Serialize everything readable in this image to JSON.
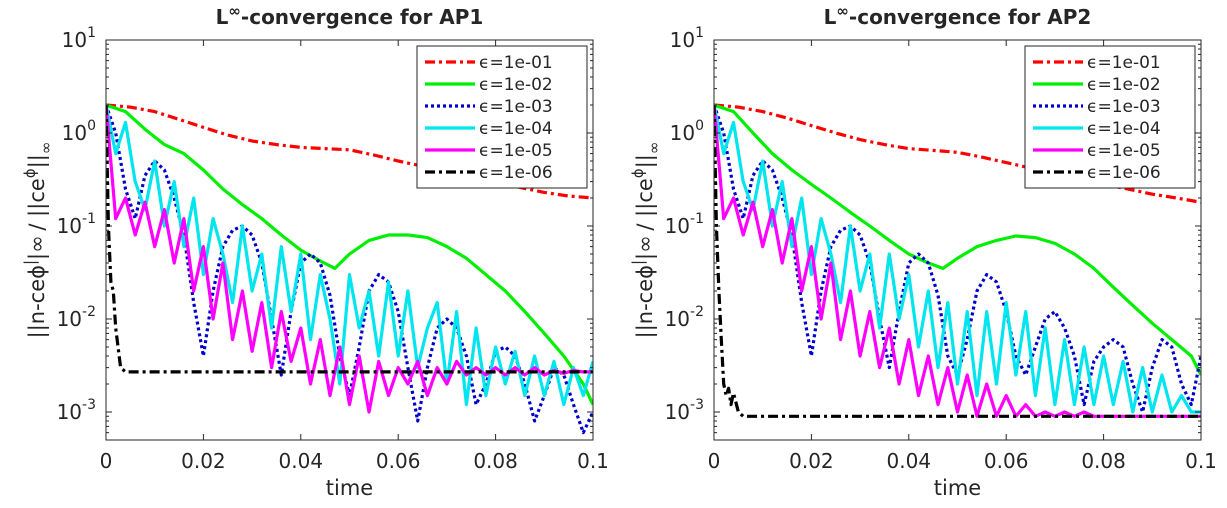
{
  "chart_data": [
    {
      "type": "line",
      "title": "L∞-convergence for AP1",
      "xlabel": "time",
      "ylabel": "||n-ceϕ||∞ / ||ceϕ||∞",
      "xlim": [
        0,
        0.1
      ],
      "ylim": [
        0.0005,
        10
      ],
      "yscale": "log",
      "xticks": [
        "0",
        "0.02",
        "0.04",
        "0.06",
        "0.08",
        "0.1"
      ],
      "yticks": [
        "10-3",
        "10-2",
        "10-1",
        "100",
        "101"
      ],
      "legend_position": "top-right",
      "grid": false,
      "series": [
        {
          "name": "ϵ=1e-01",
          "color": "#ff0000",
          "style": "dashdot",
          "x": [
            0,
            0.005,
            0.01,
            0.015,
            0.02,
            0.025,
            0.03,
            0.035,
            0.04,
            0.045,
            0.05,
            0.055,
            0.06,
            0.065,
            0.07,
            0.075,
            0.08,
            0.085,
            0.09,
            0.095,
            0.1
          ],
          "y": [
            2.0,
            1.9,
            1.7,
            1.4,
            1.15,
            0.95,
            0.82,
            0.75,
            0.7,
            0.68,
            0.66,
            0.58,
            0.5,
            0.44,
            0.4,
            0.35,
            0.3,
            0.26,
            0.23,
            0.21,
            0.2
          ]
        },
        {
          "name": "ϵ=1e-02",
          "color": "#00ee00",
          "style": "solid",
          "x": [
            0,
            0.004,
            0.008,
            0.012,
            0.016,
            0.02,
            0.024,
            0.028,
            0.032,
            0.036,
            0.04,
            0.044,
            0.047,
            0.05,
            0.054,
            0.058,
            0.062,
            0.066,
            0.07,
            0.074,
            0.078,
            0.082,
            0.086,
            0.09,
            0.094,
            0.098,
            0.1
          ],
          "y": [
            2.0,
            1.7,
            1.1,
            0.75,
            0.6,
            0.4,
            0.25,
            0.17,
            0.12,
            0.08,
            0.055,
            0.042,
            0.035,
            0.05,
            0.07,
            0.08,
            0.08,
            0.075,
            0.06,
            0.045,
            0.03,
            0.02,
            0.012,
            0.007,
            0.004,
            0.002,
            0.0012
          ]
        },
        {
          "name": "ϵ=1e-03",
          "color": "#0000cc",
          "style": "dotted",
          "x": [
            0,
            0.002,
            0.004,
            0.006,
            0.008,
            0.01,
            0.012,
            0.014,
            0.016,
            0.018,
            0.02,
            0.022,
            0.024,
            0.026,
            0.028,
            0.03,
            0.032,
            0.034,
            0.036,
            0.038,
            0.04,
            0.042,
            0.044,
            0.046,
            0.048,
            0.05,
            0.052,
            0.054,
            0.056,
            0.058,
            0.06,
            0.062,
            0.064,
            0.066,
            0.068,
            0.07,
            0.072,
            0.074,
            0.076,
            0.078,
            0.08,
            0.082,
            0.084,
            0.086,
            0.088,
            0.09,
            0.092,
            0.094,
            0.096,
            0.098,
            0.1
          ],
          "y": [
            2.0,
            1.0,
            0.25,
            0.12,
            0.35,
            0.5,
            0.4,
            0.2,
            0.08,
            0.015,
            0.004,
            0.02,
            0.06,
            0.09,
            0.1,
            0.08,
            0.04,
            0.01,
            0.0025,
            0.012,
            0.04,
            0.05,
            0.04,
            0.018,
            0.004,
            0.0015,
            0.005,
            0.02,
            0.03,
            0.025,
            0.012,
            0.003,
            0.0008,
            0.003,
            0.008,
            0.01,
            0.008,
            0.004,
            0.0012,
            0.002,
            0.0045,
            0.005,
            0.004,
            0.002,
            0.0008,
            0.0015,
            0.003,
            0.0025,
            0.0012,
            0.0006,
            0.001
          ]
        },
        {
          "name": "ϵ=1e-04",
          "color": "#00e5ee",
          "style": "solid",
          "x": [
            0,
            0.002,
            0.004,
            0.006,
            0.008,
            0.01,
            0.012,
            0.014,
            0.016,
            0.018,
            0.02,
            0.022,
            0.024,
            0.026,
            0.028,
            0.03,
            0.032,
            0.034,
            0.036,
            0.038,
            0.04,
            0.042,
            0.044,
            0.046,
            0.048,
            0.05,
            0.052,
            0.054,
            0.056,
            0.058,
            0.06,
            0.062,
            0.064,
            0.066,
            0.068,
            0.07,
            0.072,
            0.074,
            0.076,
            0.078,
            0.08,
            0.082,
            0.084,
            0.086,
            0.088,
            0.09,
            0.092,
            0.094,
            0.096,
            0.098,
            0.1
          ],
          "y": [
            2.0,
            0.6,
            1.3,
            0.3,
            0.15,
            0.5,
            0.1,
            0.3,
            0.06,
            0.2,
            0.03,
            0.12,
            0.05,
            0.015,
            0.1,
            0.02,
            0.05,
            0.008,
            0.06,
            0.012,
            0.05,
            0.006,
            0.03,
            0.01,
            0.002,
            0.03,
            0.008,
            0.02,
            0.004,
            0.025,
            0.004,
            0.02,
            0.003,
            0.008,
            0.015,
            0.002,
            0.012,
            0.0012,
            0.008,
            0.0015,
            0.005,
            0.002,
            0.0045,
            0.0015,
            0.004,
            0.0015,
            0.0035,
            0.0012,
            0.003,
            0.0015,
            0.0035
          ]
        },
        {
          "name": "ϵ=1e-05",
          "color": "#ff00ff",
          "style": "solid",
          "x": [
            0,
            0.002,
            0.004,
            0.006,
            0.008,
            0.01,
            0.012,
            0.014,
            0.016,
            0.018,
            0.02,
            0.022,
            0.024,
            0.026,
            0.028,
            0.03,
            0.032,
            0.034,
            0.036,
            0.038,
            0.04,
            0.042,
            0.044,
            0.046,
            0.048,
            0.05,
            0.052,
            0.054,
            0.056,
            0.058,
            0.06,
            0.062,
            0.064,
            0.066,
            0.068,
            0.07,
            0.072,
            0.074,
            0.076,
            0.078,
            0.08,
            0.082,
            0.084,
            0.086,
            0.088,
            0.09,
            0.092,
            0.094,
            0.096,
            0.098,
            0.1
          ],
          "y": [
            2.0,
            0.12,
            0.2,
            0.08,
            0.18,
            0.06,
            0.15,
            0.04,
            0.12,
            0.02,
            0.06,
            0.01,
            0.04,
            0.006,
            0.02,
            0.0045,
            0.015,
            0.003,
            0.012,
            0.0035,
            0.008,
            0.002,
            0.006,
            0.0015,
            0.005,
            0.0012,
            0.004,
            0.001,
            0.0035,
            0.0015,
            0.003,
            0.002,
            0.0035,
            0.0015,
            0.003,
            0.002,
            0.0035,
            0.0025,
            0.003,
            0.0025,
            0.003,
            0.0025,
            0.003,
            0.0025,
            0.003,
            0.0025,
            0.0028,
            0.0026,
            0.0028,
            0.0027,
            0.0027
          ]
        },
        {
          "name": "ϵ=1e-06",
          "color": "#000000",
          "style": "dashdot",
          "x": [
            0,
            0.0005,
            0.001,
            0.0015,
            0.002,
            0.003,
            0.004,
            0.01,
            0.02,
            0.03,
            0.04,
            0.05,
            0.06,
            0.07,
            0.08,
            0.09,
            0.1
          ],
          "y": [
            2.0,
            0.1,
            0.025,
            0.02,
            0.008,
            0.003,
            0.0027,
            0.0027,
            0.0027,
            0.0027,
            0.0027,
            0.0027,
            0.0027,
            0.0027,
            0.0027,
            0.0027,
            0.0027
          ]
        }
      ]
    },
    {
      "type": "line",
      "title": "L∞-convergence for AP2",
      "xlabel": "time",
      "ylabel": "||n-ceϕ||∞ / ||ceϕ||∞",
      "xlim": [
        0,
        0.1
      ],
      "ylim": [
        0.0005,
        10
      ],
      "yscale": "log",
      "xticks": [
        "0",
        "0.02",
        "0.04",
        "0.06",
        "0.08",
        "0.1"
      ],
      "yticks": [
        "10-3",
        "10-2",
        "10-1",
        "100",
        "101"
      ],
      "legend_position": "top-right",
      "grid": false,
      "series": [
        {
          "name": "ϵ=1e-01",
          "color": "#ff0000",
          "style": "dashdot",
          "x": [
            0,
            0.005,
            0.01,
            0.015,
            0.02,
            0.025,
            0.03,
            0.035,
            0.04,
            0.045,
            0.05,
            0.055,
            0.06,
            0.065,
            0.07,
            0.075,
            0.08,
            0.085,
            0.09,
            0.095,
            0.1
          ],
          "y": [
            2.0,
            1.9,
            1.7,
            1.45,
            1.2,
            1.0,
            0.85,
            0.75,
            0.68,
            0.65,
            0.62,
            0.55,
            0.48,
            0.42,
            0.36,
            0.32,
            0.28,
            0.25,
            0.22,
            0.2,
            0.18
          ]
        },
        {
          "name": "ϵ=1e-02",
          "color": "#00ee00",
          "style": "solid",
          "x": [
            0,
            0.004,
            0.008,
            0.012,
            0.016,
            0.02,
            0.024,
            0.028,
            0.032,
            0.036,
            0.04,
            0.044,
            0.047,
            0.05,
            0.054,
            0.058,
            0.062,
            0.066,
            0.07,
            0.074,
            0.078,
            0.082,
            0.086,
            0.09,
            0.094,
            0.098,
            0.1
          ],
          "y": [
            2.0,
            1.7,
            1.0,
            0.6,
            0.4,
            0.28,
            0.2,
            0.14,
            0.1,
            0.07,
            0.05,
            0.04,
            0.035,
            0.045,
            0.06,
            0.07,
            0.078,
            0.075,
            0.065,
            0.05,
            0.035,
            0.022,
            0.014,
            0.009,
            0.006,
            0.004,
            0.0025
          ]
        },
        {
          "name": "ϵ=1e-03",
          "color": "#0000cc",
          "style": "dotted",
          "x": [
            0,
            0.002,
            0.004,
            0.006,
            0.008,
            0.01,
            0.012,
            0.014,
            0.016,
            0.018,
            0.02,
            0.022,
            0.024,
            0.026,
            0.028,
            0.03,
            0.032,
            0.034,
            0.036,
            0.038,
            0.04,
            0.042,
            0.044,
            0.046,
            0.048,
            0.05,
            0.052,
            0.054,
            0.056,
            0.058,
            0.06,
            0.062,
            0.064,
            0.066,
            0.068,
            0.07,
            0.072,
            0.074,
            0.076,
            0.078,
            0.08,
            0.082,
            0.084,
            0.086,
            0.088,
            0.09,
            0.092,
            0.094,
            0.096,
            0.098,
            0.1
          ],
          "y": [
            2.0,
            1.0,
            0.25,
            0.12,
            0.35,
            0.5,
            0.4,
            0.2,
            0.08,
            0.015,
            0.004,
            0.02,
            0.06,
            0.09,
            0.1,
            0.08,
            0.04,
            0.01,
            0.003,
            0.012,
            0.04,
            0.05,
            0.04,
            0.018,
            0.004,
            0.0025,
            0.006,
            0.02,
            0.03,
            0.025,
            0.012,
            0.004,
            0.0025,
            0.005,
            0.01,
            0.012,
            0.008,
            0.004,
            0.0012,
            0.0035,
            0.005,
            0.006,
            0.005,
            0.002,
            0.001,
            0.003,
            0.006,
            0.005,
            0.002,
            0.0012,
            0.004
          ]
        },
        {
          "name": "ϵ=1e-04",
          "color": "#00e5ee",
          "style": "solid",
          "x": [
            0,
            0.002,
            0.004,
            0.006,
            0.008,
            0.01,
            0.012,
            0.014,
            0.016,
            0.018,
            0.02,
            0.022,
            0.024,
            0.026,
            0.028,
            0.03,
            0.032,
            0.034,
            0.036,
            0.038,
            0.04,
            0.042,
            0.044,
            0.046,
            0.048,
            0.05,
            0.052,
            0.054,
            0.056,
            0.058,
            0.06,
            0.062,
            0.064,
            0.066,
            0.068,
            0.07,
            0.072,
            0.074,
            0.076,
            0.078,
            0.08,
            0.082,
            0.084,
            0.086,
            0.088,
            0.09,
            0.092,
            0.094,
            0.096,
            0.098,
            0.1
          ],
          "y": [
            2.0,
            0.6,
            1.3,
            0.3,
            0.15,
            0.5,
            0.1,
            0.3,
            0.06,
            0.2,
            0.03,
            0.12,
            0.05,
            0.015,
            0.1,
            0.02,
            0.05,
            0.008,
            0.05,
            0.01,
            0.03,
            0.005,
            0.02,
            0.003,
            0.015,
            0.002,
            0.012,
            0.0015,
            0.012,
            0.002,
            0.015,
            0.0025,
            0.012,
            0.0015,
            0.008,
            0.0012,
            0.006,
            0.0012,
            0.005,
            0.0012,
            0.004,
            0.0012,
            0.0035,
            0.001,
            0.003,
            0.001,
            0.0025,
            0.001,
            0.0015,
            0.001,
            0.001
          ]
        },
        {
          "name": "ϵ=1e-05",
          "color": "#ff00ff",
          "style": "solid",
          "x": [
            0,
            0.002,
            0.004,
            0.006,
            0.008,
            0.01,
            0.012,
            0.014,
            0.016,
            0.018,
            0.02,
            0.022,
            0.024,
            0.026,
            0.028,
            0.03,
            0.032,
            0.034,
            0.036,
            0.038,
            0.04,
            0.042,
            0.044,
            0.046,
            0.048,
            0.05,
            0.052,
            0.054,
            0.056,
            0.058,
            0.06,
            0.062,
            0.064,
            0.066,
            0.068,
            0.07,
            0.072,
            0.074,
            0.076,
            0.078,
            0.08,
            0.082,
            0.084,
            0.086,
            0.088,
            0.09,
            0.092,
            0.094,
            0.096,
            0.098,
            0.1
          ],
          "y": [
            2.0,
            0.12,
            0.2,
            0.08,
            0.18,
            0.06,
            0.15,
            0.04,
            0.12,
            0.02,
            0.06,
            0.01,
            0.04,
            0.006,
            0.02,
            0.004,
            0.012,
            0.003,
            0.008,
            0.002,
            0.006,
            0.0015,
            0.004,
            0.0012,
            0.003,
            0.001,
            0.0025,
            0.0009,
            0.002,
            0.0009,
            0.0015,
            0.0009,
            0.0012,
            0.0009,
            0.001,
            0.0009,
            0.001,
            0.0009,
            0.001,
            0.0009,
            0.0009,
            0.0009,
            0.0009,
            0.0009,
            0.0009,
            0.0009,
            0.0009,
            0.0009,
            0.0009,
            0.0009,
            0.0009
          ]
        },
        {
          "name": "ϵ=1e-06",
          "color": "#000000",
          "style": "dashdot",
          "x": [
            0,
            0.0005,
            0.001,
            0.0015,
            0.002,
            0.0025,
            0.003,
            0.0035,
            0.004,
            0.005,
            0.006,
            0.01,
            0.02,
            0.03,
            0.04,
            0.05,
            0.06,
            0.07,
            0.08,
            0.09,
            0.1
          ],
          "y": [
            2.0,
            0.1,
            0.02,
            0.006,
            0.002,
            0.0015,
            0.0018,
            0.0012,
            0.0016,
            0.001,
            0.0009,
            0.0009,
            0.0009,
            0.0009,
            0.0009,
            0.0009,
            0.0009,
            0.0009,
            0.0009,
            0.0009,
            0.0009
          ]
        }
      ]
    }
  ]
}
